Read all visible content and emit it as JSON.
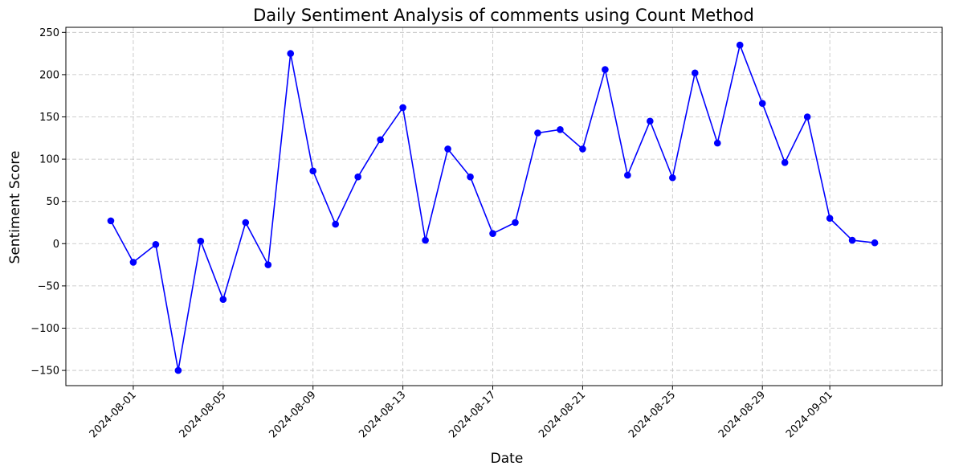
{
  "chart_data": {
    "type": "line",
    "title": "Daily Sentiment Analysis of comments using Count Method",
    "xlabel": "Date",
    "ylabel": "Sentiment Score",
    "x_start": "2024-07-31",
    "x_range": [
      "2024-07-29",
      "2024-09-06"
    ],
    "ylim": [
      -168,
      256
    ],
    "grid": true,
    "line_color": "#0000ff",
    "marker": "circle",
    "x_ticks": [
      "2024-08-01",
      "2024-08-05",
      "2024-08-09",
      "2024-08-13",
      "2024-08-17",
      "2024-08-21",
      "2024-08-25",
      "2024-08-29",
      "2024-09-01"
    ],
    "y_ticks": [
      250,
      200,
      150,
      100,
      50,
      0,
      -50,
      -100,
      -150
    ],
    "series": [
      {
        "x": [
          "2024-07-31",
          "2024-08-01",
          "2024-08-02",
          "2024-08-03",
          "2024-08-04",
          "2024-08-05",
          "2024-08-06",
          "2024-08-07",
          "2024-08-08",
          "2024-08-09",
          "2024-08-10",
          "2024-08-11",
          "2024-08-12",
          "2024-08-13",
          "2024-08-14",
          "2024-08-15",
          "2024-08-16",
          "2024-08-17",
          "2024-08-18",
          "2024-08-19",
          "2024-08-20",
          "2024-08-21",
          "2024-08-22",
          "2024-08-23",
          "2024-08-24",
          "2024-08-25",
          "2024-08-26",
          "2024-08-27",
          "2024-08-28",
          "2024-08-29",
          "2024-08-30",
          "2024-08-31",
          "2024-09-01",
          "2024-09-02",
          "2024-09-03"
        ],
        "values": [
          27,
          -22,
          -1,
          -150,
          3,
          -66,
          25,
          -25,
          225,
          86,
          23,
          79,
          123,
          161,
          4,
          112,
          79,
          12,
          25,
          131,
          135,
          112,
          206,
          81,
          145,
          78,
          202,
          119,
          235,
          166,
          96,
          150,
          30,
          4,
          1
        ]
      }
    ]
  }
}
